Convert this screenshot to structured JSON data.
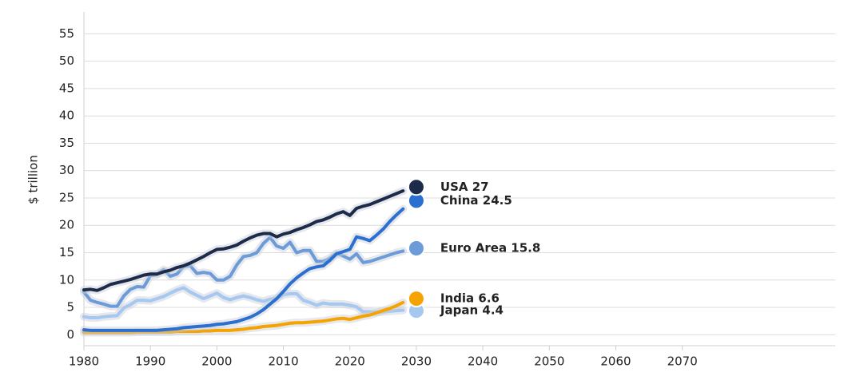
{
  "chart_data": {
    "type": "line",
    "y_label": "$ trillion",
    "xlim": [
      1980,
      2093
    ],
    "ylim": [
      -2,
      59
    ],
    "xticks": [
      1980,
      1990,
      2000,
      2010,
      2020,
      2030,
      2040,
      2050,
      2060,
      2070
    ],
    "yticks": [
      0,
      5,
      10,
      15,
      20,
      25,
      30,
      35,
      40,
      45,
      50,
      55
    ],
    "grid": true,
    "x": [
      1980,
      1981,
      1982,
      1983,
      1984,
      1985,
      1986,
      1987,
      1988,
      1989,
      1990,
      1991,
      1992,
      1993,
      1994,
      1995,
      1996,
      1997,
      1998,
      1999,
      2000,
      2001,
      2002,
      2003,
      2004,
      2005,
      2006,
      2007,
      2008,
      2009,
      2010,
      2011,
      2012,
      2013,
      2014,
      2015,
      2016,
      2017,
      2018,
      2019,
      2020,
      2021,
      2022,
      2023,
      2024,
      2025,
      2026,
      2027,
      2028
    ],
    "series": [
      {
        "name": "Japan",
        "color": "#a4c8f0",
        "end_x": 2030,
        "end_value": 4.4,
        "end_label": "Japan 4.4",
        "values": [
          3.3,
          3.1,
          3.1,
          3.3,
          3.4,
          3.5,
          4.9,
          5.5,
          6.3,
          6.3,
          6.2,
          6.6,
          7.0,
          7.6,
          8.2,
          8.6,
          7.8,
          7.2,
          6.6,
          7.1,
          7.6,
          6.8,
          6.4,
          6.8,
          7.1,
          6.8,
          6.4,
          6.1,
          6.5,
          6.7,
          7.3,
          7.5,
          7.5,
          6.3,
          5.9,
          5.4,
          5.8,
          5.6,
          5.6,
          5.6,
          5.4,
          5.1,
          4.2,
          4.2,
          4.1,
          4.2,
          4.3,
          4.4,
          4.5
        ]
      },
      {
        "name": "India",
        "color": "#f5a300",
        "end_x": 2030,
        "end_value": 6.6,
        "end_label": "India 6.6",
        "values": [
          0.4,
          0.4,
          0.4,
          0.4,
          0.4,
          0.4,
          0.4,
          0.4,
          0.5,
          0.5,
          0.5,
          0.5,
          0.5,
          0.5,
          0.6,
          0.6,
          0.6,
          0.6,
          0.7,
          0.7,
          0.8,
          0.8,
          0.8,
          0.9,
          1.0,
          1.2,
          1.3,
          1.5,
          1.6,
          1.7,
          1.9,
          2.1,
          2.2,
          2.2,
          2.3,
          2.4,
          2.5,
          2.7,
          2.9,
          3.0,
          2.8,
          3.1,
          3.4,
          3.6,
          4.0,
          4.4,
          4.8,
          5.3,
          5.9
        ]
      },
      {
        "name": "Euro Area",
        "color": "#6b9bd8",
        "end_x": 2030,
        "end_value": 15.8,
        "end_label": "Euro Area 15.8",
        "values": [
          7.8,
          6.3,
          5.9,
          5.6,
          5.2,
          5.2,
          7.1,
          8.3,
          8.8,
          8.7,
          10.8,
          11.0,
          11.9,
          10.7,
          11.1,
          12.5,
          12.6,
          11.2,
          11.4,
          11.2,
          10.0,
          10.0,
          10.7,
          12.8,
          14.3,
          14.5,
          15.0,
          16.7,
          17.8,
          16.2,
          15.8,
          16.9,
          15.0,
          15.4,
          15.4,
          13.4,
          13.4,
          14.0,
          14.9,
          14.4,
          13.8,
          14.8,
          13.2,
          13.4,
          13.8,
          14.2,
          14.6,
          15.0,
          15.3
        ]
      },
      {
        "name": "China",
        "color": "#2b6fd1",
        "end_x": 2030,
        "end_value": 24.5,
        "end_label": "China 24.5",
        "values": [
          0.9,
          0.8,
          0.8,
          0.8,
          0.8,
          0.8,
          0.8,
          0.8,
          0.8,
          0.8,
          0.8,
          0.8,
          0.9,
          1.0,
          1.1,
          1.3,
          1.4,
          1.5,
          1.6,
          1.7,
          1.9,
          2.0,
          2.2,
          2.4,
          2.8,
          3.2,
          3.8,
          4.6,
          5.6,
          6.6,
          7.9,
          9.3,
          10.4,
          11.3,
          12.1,
          12.4,
          12.6,
          13.6,
          14.8,
          15.2,
          15.6,
          17.9,
          17.6,
          17.2,
          18.2,
          19.3,
          20.7,
          21.9,
          23.0
        ]
      },
      {
        "name": "USA",
        "color": "#1c2b4a",
        "end_x": 2030,
        "end_value": 27,
        "end_label": "USA 27",
        "values": [
          8.2,
          8.3,
          8.1,
          8.6,
          9.2,
          9.5,
          9.8,
          10.1,
          10.5,
          10.9,
          11.1,
          11.1,
          11.5,
          11.8,
          12.3,
          12.6,
          13.1,
          13.7,
          14.3,
          15.0,
          15.6,
          15.7,
          16.0,
          16.4,
          17.1,
          17.7,
          18.2,
          18.5,
          18.5,
          17.9,
          18.4,
          18.7,
          19.2,
          19.6,
          20.1,
          20.7,
          21.0,
          21.5,
          22.1,
          22.5,
          21.8,
          23.1,
          23.5,
          23.8,
          24.3,
          24.8,
          25.3,
          25.8,
          26.3
        ]
      }
    ]
  }
}
